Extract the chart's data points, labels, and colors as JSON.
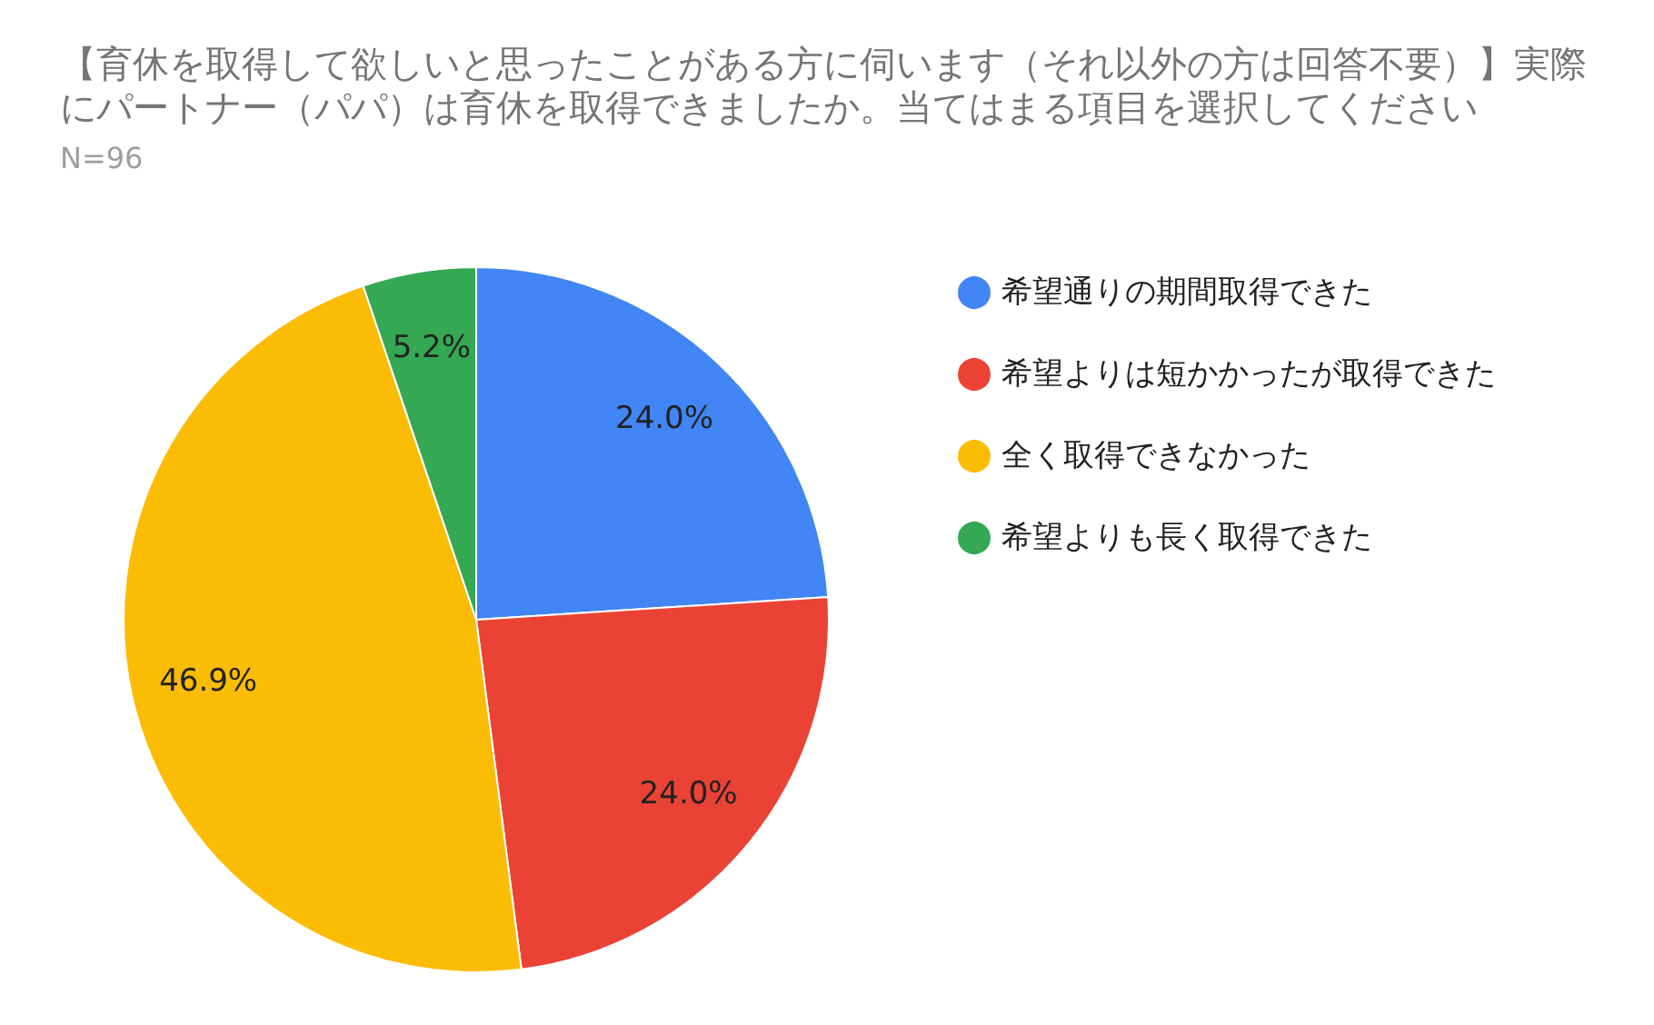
{
  "chart_data": {
    "type": "pie",
    "title": "【育休を取得して欲しいと思ったことがある方に伺います（それ以外の方は回答不要）】実際にパートナー（パパ）は育休を取得できましたか。当てはまる項目を選択してください",
    "subtitle": "N=96",
    "categories": [
      "希望通りの期間取得できた",
      "希望よりは短かかったが取得できた",
      "全く取得できなかった",
      "希望よりも長く取得できた"
    ],
    "values": [
      24.0,
      24.0,
      46.9,
      5.2
    ],
    "value_labels": [
      "24.0%",
      "24.0%",
      "46.9%",
      "5.2%"
    ],
    "colors": [
      "#4285f4",
      "#ea4335",
      "#fbbc04",
      "#34a853"
    ],
    "legend": "right"
  }
}
